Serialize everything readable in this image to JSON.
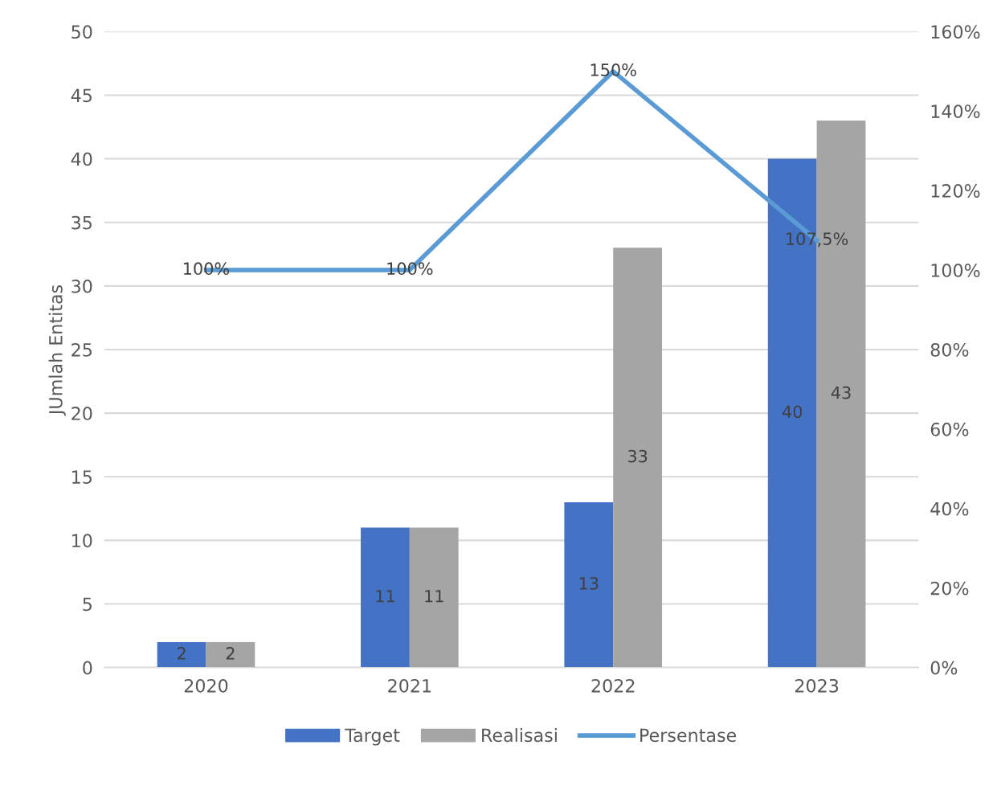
{
  "chart_data": {
    "type": "bar",
    "categories": [
      "2020",
      "2021",
      "2022",
      "2023"
    ],
    "ylabel": "JUmlah Entitas",
    "ylim": [
      0,
      50
    ],
    "yticks": [
      0,
      5,
      10,
      15,
      20,
      25,
      30,
      35,
      40,
      45,
      50
    ],
    "y2lim": [
      0,
      160
    ],
    "y2ticks": [
      {
        "value": 0,
        "label": "0%"
      },
      {
        "value": 20,
        "label": "20%"
      },
      {
        "value": 40,
        "label": "40%"
      },
      {
        "value": 60,
        "label": "60%"
      },
      {
        "value": 80,
        "label": "80%"
      },
      {
        "value": 100,
        "label": "100%"
      },
      {
        "value": 120,
        "label": "120%"
      },
      {
        "value": 140,
        "label": "140%"
      },
      {
        "value": 160,
        "label": "160%"
      }
    ],
    "grid": "y",
    "legend": "bottom",
    "data_labels": true,
    "series": [
      {
        "name": "Target",
        "color": "#4472c4",
        "values": [
          2,
          11,
          13,
          40
        ]
      },
      {
        "name": "Realisasi",
        "color": "#a5a5a5",
        "values": [
          2,
          11,
          33,
          43
        ]
      },
      {
        "name": "Persentase",
        "type": "line",
        "axis": "y2",
        "color": "#5b9bd5",
        "values": [
          100,
          100,
          150,
          107.5
        ],
        "value_labels": [
          "100%",
          "100%",
          "150%",
          "107,5%"
        ]
      }
    ]
  }
}
